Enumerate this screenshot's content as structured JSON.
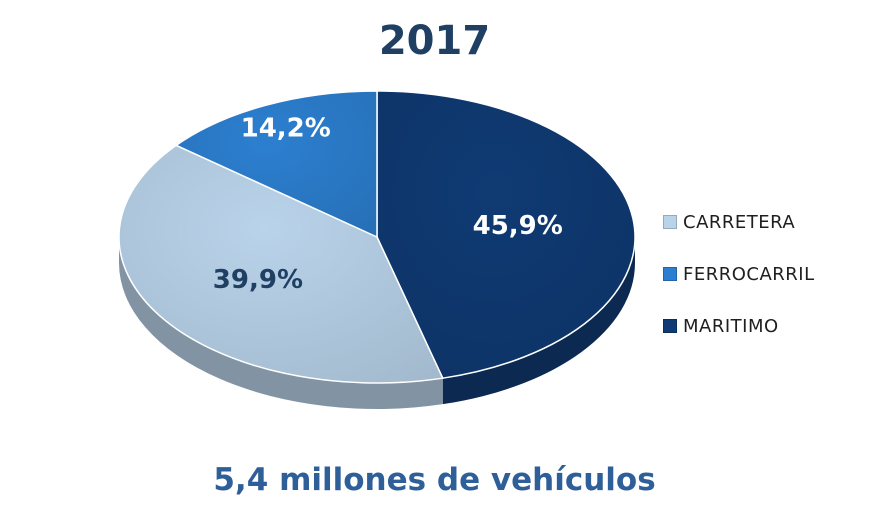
{
  "chart_data": {
    "type": "pie",
    "title": "2017",
    "subtitle": "5,4 millones de vehículos",
    "series": [
      {
        "name": "CARRETERA",
        "value": 39.9,
        "label": "39,9%",
        "color": "#b9d3ea",
        "label_color": "#1f3f63"
      },
      {
        "name": "FERROCARRIL",
        "value": 14.2,
        "label": "14,2%",
        "color": "#2c7fd0",
        "label_color": "#ffffff"
      },
      {
        "name": "MARITIMO",
        "value": 45.9,
        "label": "45,9%",
        "color": "#0f3a73",
        "label_color": "#ffffff"
      }
    ],
    "legend_position": "right",
    "style": "3d"
  }
}
